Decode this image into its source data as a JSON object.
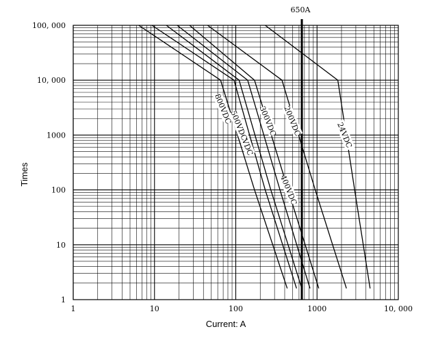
{
  "chart_data": {
    "type": "line",
    "title": "",
    "xlabel": "Current: A",
    "ylabel": "Times",
    "x_scale": "log",
    "y_scale": "log",
    "xlim": [
      1,
      10000
    ],
    "ylim": [
      1,
      100000
    ],
    "grid": true,
    "legend": "none",
    "x_ticks": [
      {
        "value": 1,
        "label": "1"
      },
      {
        "value": 10,
        "label": "10"
      },
      {
        "value": 100,
        "label": "100"
      },
      {
        "value": 1000,
        "label": "1000"
      },
      {
        "value": 10000,
        "label": "10, 000"
      }
    ],
    "y_ticks": [
      {
        "value": 1,
        "label": "1"
      },
      {
        "value": 10,
        "label": "10"
      },
      {
        "value": 100,
        "label": "100"
      },
      {
        "value": 1000,
        "label": "1000"
      },
      {
        "value": 10000,
        "label": "10, 000"
      },
      {
        "value": 100000,
        "label": "100, 000"
      }
    ],
    "reference_line": {
      "x": 650,
      "label": "650A"
    },
    "series": [
      {
        "name": "800VDC",
        "points": [
          [
            6.4,
            100000
          ],
          [
            65,
            10000
          ],
          [
            170,
            100
          ],
          [
            430,
            1.6
          ]
        ]
      },
      {
        "name": "600VDC",
        "points": [
          [
            9.3,
            100000
          ],
          [
            95,
            10000
          ],
          [
            230,
            100
          ],
          [
            560,
            1.6
          ]
        ]
      },
      {
        "name": "500VDC",
        "points": [
          [
            14,
            100000
          ],
          [
            110,
            10000
          ],
          [
            270,
            100
          ],
          [
            650,
            1.6
          ]
        ]
      },
      {
        "name": "400VDC",
        "points": [
          [
            19,
            100000
          ],
          [
            140,
            10000
          ],
          [
            350,
            100
          ],
          [
            820,
            1.6
          ]
        ]
      },
      {
        "name": "300VDC",
        "points": [
          [
            27,
            100000
          ],
          [
            170,
            10000
          ],
          [
            440,
            100
          ],
          [
            1050,
            1.6
          ]
        ]
      },
      {
        "name": "200VDC",
        "points": [
          [
            45,
            100000
          ],
          [
            370,
            10000
          ],
          [
            950,
            100
          ],
          [
            2300,
            1.6
          ]
        ]
      },
      {
        "name": "24VDC",
        "points": [
          [
            230,
            100000
          ],
          [
            1800,
            10000
          ],
          [
            2900,
            100
          ],
          [
            4500,
            1.6
          ]
        ]
      }
    ],
    "curve_labels": [
      "800VDC",
      "600VDC",
      "500VDC",
      "400VDC",
      "300VDC",
      "200VDC",
      "24VDC"
    ],
    "curve_label_positions_data": [
      {
        "text": "800VDC",
        "x": 70,
        "y": 3000
      },
      {
        "text": "600VDC",
        "x": 130,
        "y": 800
      },
      {
        "text": "500VDC",
        "x": 110,
        "y": 1500
      },
      {
        "text": "400VDC",
        "x": 450,
        "y": 100
      },
      {
        "text": "300VDC",
        "x": 250,
        "y": 1800
      },
      {
        "text": "200VDC",
        "x": 500,
        "y": 1800
      },
      {
        "text": "24VDC",
        "x": 2200,
        "y": 1000
      }
    ]
  }
}
